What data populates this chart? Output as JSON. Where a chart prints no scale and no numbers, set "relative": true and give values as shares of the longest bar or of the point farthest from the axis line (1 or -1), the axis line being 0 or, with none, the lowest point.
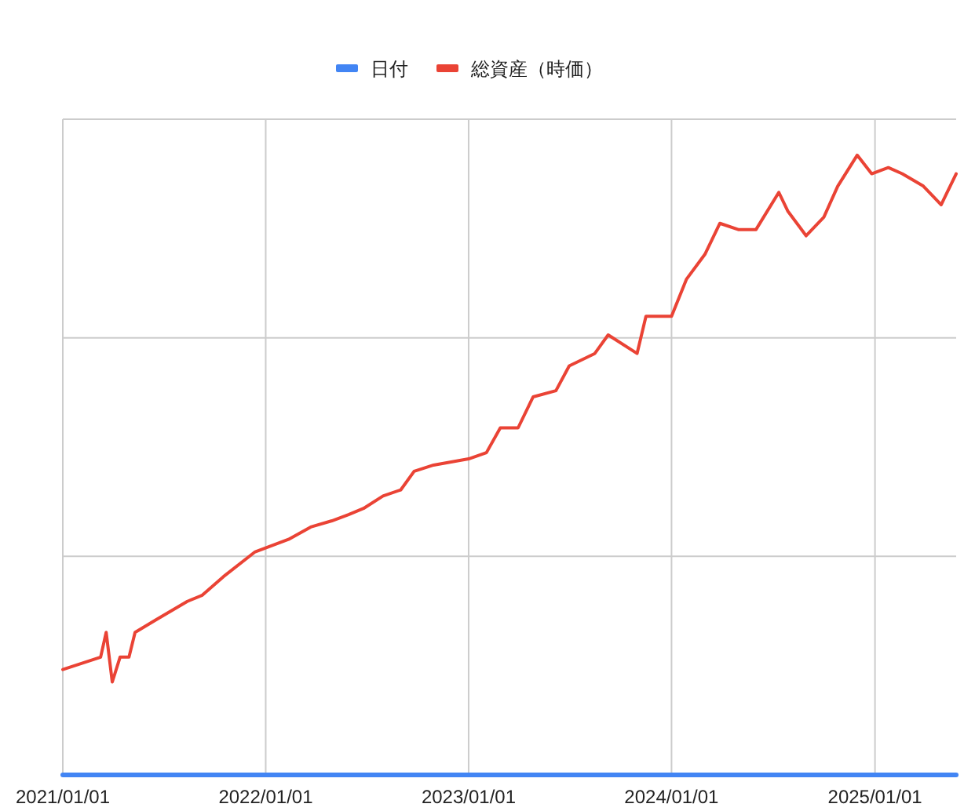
{
  "chart_data": {
    "type": "line",
    "relative": true,
    "legend": "top",
    "grid": true,
    "xlim": [
      "2021-01-01",
      "2025-05-27"
    ],
    "xticks": [
      {
        "value": "2021-01-01",
        "label": "2021/01/01"
      },
      {
        "value": "2022-01-01",
        "label": "2022/01/01"
      },
      {
        "value": "2023-01-01",
        "label": "2023/01/01"
      },
      {
        "value": "2024-01-01",
        "label": "2024/01/01"
      },
      {
        "value": "2025-01-01",
        "label": "2025/01/01"
      }
    ],
    "series": [
      {
        "name": "日付",
        "color": "#4285f4",
        "x": [
          "2021-01-01",
          "2025-05-27"
        ],
        "values": [
          0,
          0
        ]
      },
      {
        "name": "総資産（時価）",
        "color": "#ea4335",
        "x": [
          "2021-01-01",
          "2021-03-10",
          "2021-03-20",
          "2021-03-31",
          "2021-04-14",
          "2021-04-30",
          "2021-05-11",
          "2021-06-17",
          "2021-08-13",
          "2021-09-09",
          "2021-10-17",
          "2021-12-13",
          "2022-02-11",
          "2022-03-23",
          "2022-04-30",
          "2022-05-30",
          "2022-06-26",
          "2022-07-31",
          "2022-09-01",
          "2022-09-25",
          "2022-10-30",
          "2023-01-01",
          "2023-02-02",
          "2023-02-27",
          "2023-03-31",
          "2023-04-27",
          "2023-06-07",
          "2023-07-01",
          "2023-08-16",
          "2023-09-09",
          "2023-10-31",
          "2023-11-16",
          "2024-01-01",
          "2024-01-28",
          "2024-03-01",
          "2024-03-28",
          "2024-04-30",
          "2024-06-01",
          "2024-07-12",
          "2024-07-28",
          "2024-08-30",
          "2024-10-01",
          "2024-10-26",
          "2024-11-30",
          "2024-12-26",
          "2025-01-25",
          "2025-02-19",
          "2025-03-29",
          "2025-04-30",
          "2025-05-27"
        ],
        "values": [
          0.17,
          0.19,
          0.23,
          0.15,
          0.19,
          0.19,
          0.23,
          0.25,
          0.28,
          0.29,
          0.32,
          0.36,
          0.38,
          0.4,
          0.41,
          0.42,
          0.43,
          0.45,
          0.46,
          0.49,
          0.5,
          0.51,
          0.52,
          0.56,
          0.56,
          0.61,
          0.62,
          0.66,
          0.68,
          0.71,
          0.68,
          0.74,
          0.74,
          0.8,
          0.84,
          0.89,
          0.88,
          0.88,
          0.94,
          0.91,
          0.87,
          0.9,
          0.95,
          1,
          0.97,
          0.98,
          0.97,
          0.95,
          0.92,
          0.97
        ]
      }
    ]
  }
}
